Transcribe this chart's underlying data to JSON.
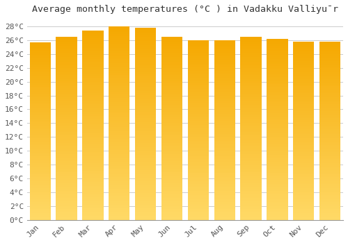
{
  "title": "Average monthly temperatures (°C ) in Vadakku Valliyūr",
  "months": [
    "Jan",
    "Feb",
    "Mar",
    "Apr",
    "May",
    "Jun",
    "Jul",
    "Aug",
    "Sep",
    "Oct",
    "Nov",
    "Dec"
  ],
  "values": [
    25.7,
    26.5,
    27.4,
    28.0,
    27.8,
    26.5,
    26.0,
    26.0,
    26.5,
    26.2,
    25.8,
    25.8
  ],
  "bar_color_top": "#F5A800",
  "bar_color_bottom": "#FFD966",
  "background_color": "#FFFFFF",
  "grid_color": "#CCCCCC",
  "ylim": [
    0,
    29
  ],
  "yticks": [
    0,
    2,
    4,
    6,
    8,
    10,
    12,
    14,
    16,
    18,
    20,
    22,
    24,
    26,
    28
  ],
  "title_fontsize": 9.5,
  "tick_fontsize": 8,
  "font_family": "monospace"
}
